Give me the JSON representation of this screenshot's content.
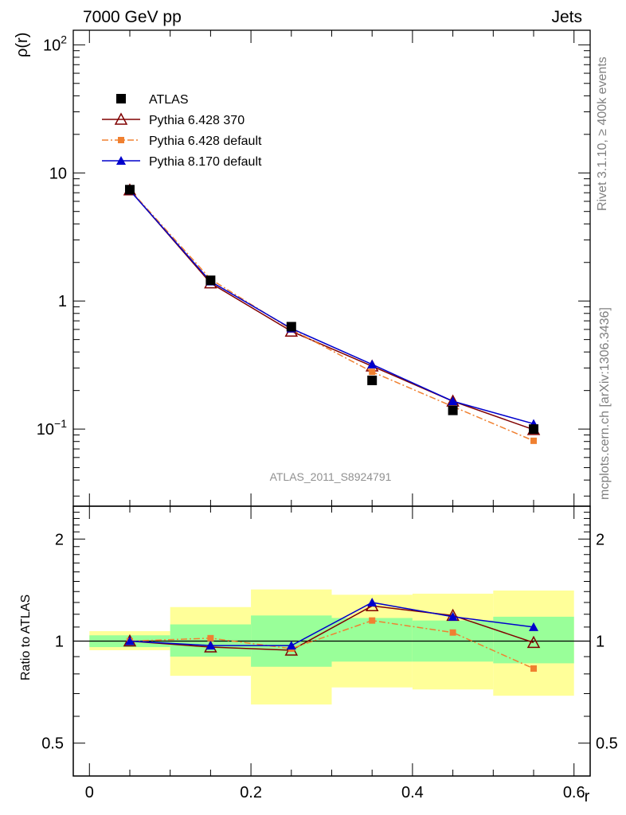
{
  "header": {
    "left": "7000 GeV pp",
    "right": "Jets"
  },
  "side_labels": {
    "rivet": "Rivet 3.1.10, ≥ 400k events",
    "mcplots": "mcplots.cern.ch [arXiv:1306.3436]"
  },
  "analysis_id": "ATLAS_2011_S8924791",
  "legend": [
    {
      "label": "ATLAS",
      "marker": "square",
      "color": "#000000"
    },
    {
      "label": "Pythia 6.428 370",
      "marker": "open-triangle",
      "color": "#800000"
    },
    {
      "label": "Pythia 6.428 default",
      "marker": "small-square",
      "color": "#f08030"
    },
    {
      "label": "Pythia 8.170 default",
      "marker": "triangle",
      "color": "#0000cc"
    }
  ],
  "chart_data": [
    {
      "type": "line",
      "ylabel": "ρ(r)",
      "yscale": "log",
      "ylim": [
        0.025,
        130
      ],
      "y_ticks": [
        {
          "value": 0.1,
          "label": "10",
          "exp": "−1"
        },
        {
          "value": 1,
          "label": "1",
          "exp": ""
        },
        {
          "value": 10,
          "label": "10",
          "exp": ""
        },
        {
          "value": 100,
          "label": "10",
          "exp": "2"
        }
      ],
      "xlim": [
        -0.02,
        0.62
      ],
      "x": [
        0.05,
        0.15,
        0.25,
        0.35,
        0.45,
        0.55
      ],
      "series": [
        {
          "name": "ATLAS",
          "values": [
            7.4,
            1.45,
            0.63,
            0.24,
            0.14,
            0.1
          ]
        },
        {
          "name": "Pythia 6.428 370",
          "values": [
            7.35,
            1.38,
            0.58,
            0.31,
            0.165,
            0.099
          ]
        },
        {
          "name": "Pythia 6.428 default",
          "values": [
            7.4,
            1.48,
            0.6,
            0.28,
            0.15,
            0.081
          ]
        },
        {
          "name": "Pythia 8.170 default",
          "values": [
            7.3,
            1.42,
            0.61,
            0.32,
            0.165,
            0.11
          ]
        }
      ]
    },
    {
      "type": "line",
      "ylabel": "Ratio to ATLAS",
      "xlabel": "r",
      "yscale": "log",
      "ylim": [
        0.4,
        2.5
      ],
      "y_ticks": [
        {
          "value": 0.5,
          "label": "0.5"
        },
        {
          "value": 1,
          "label": "1"
        },
        {
          "value": 2,
          "label": "2"
        }
      ],
      "x_ticks": [
        {
          "value": 0,
          "label": "0"
        },
        {
          "value": 0.2,
          "label": "0.2"
        },
        {
          "value": 0.4,
          "label": "0.4"
        },
        {
          "value": 0.6,
          "label": "0.6"
        }
      ],
      "xlim": [
        -0.02,
        0.62
      ],
      "bands": [
        {
          "x": [
            0.0,
            0.1
          ],
          "stat": [
            0.96,
            1.04
          ],
          "total": [
            0.94,
            1.07
          ]
        },
        {
          "x": [
            0.1,
            0.2
          ],
          "stat": [
            0.9,
            1.12
          ],
          "total": [
            0.79,
            1.26
          ]
        },
        {
          "x": [
            0.2,
            0.3
          ],
          "stat": [
            0.84,
            1.19
          ],
          "total": [
            0.65,
            1.42
          ]
        },
        {
          "x": [
            0.3,
            0.4
          ],
          "stat": [
            0.87,
            1.17
          ],
          "total": [
            0.73,
            1.37
          ]
        },
        {
          "x": [
            0.4,
            0.5
          ],
          "stat": [
            0.87,
            1.15
          ],
          "total": [
            0.72,
            1.38
          ]
        },
        {
          "x": [
            0.5,
            0.6
          ],
          "stat": [
            0.86,
            1.18
          ],
          "total": [
            0.69,
            1.41
          ]
        }
      ],
      "x": [
        0.05,
        0.15,
        0.25,
        0.35,
        0.45,
        0.55
      ],
      "series": [
        {
          "name": "Pythia 6.428 370",
          "values": [
            1.0,
            0.96,
            0.94,
            1.27,
            1.19,
            0.99
          ]
        },
        {
          "name": "Pythia 6.428 default",
          "values": [
            1.0,
            1.02,
            0.95,
            1.15,
            1.06,
            0.83
          ]
        },
        {
          "name": "Pythia 8.170 default",
          "values": [
            1.0,
            0.97,
            0.97,
            1.3,
            1.18,
            1.1
          ]
        }
      ]
    }
  ]
}
